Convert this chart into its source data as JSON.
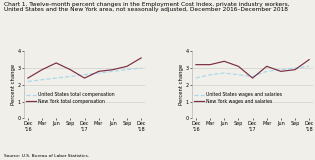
{
  "title_line1": "Chart 1. Twelve-month percent changes in the Employment Cost Index, private industry workers,",
  "title_line2": "United States and the New York area, not seasonally adjusted, December 2016–December 2018",
  "source": "Source: U.S. Bureau of Labor Statistics.",
  "ylabel": "Percent change",
  "xtick_labels": [
    "Dec\n'16",
    "Mar",
    "Jun",
    "Sep",
    "Dec\n'17",
    "Mar",
    "Jun",
    "Sep",
    "Dec\n'18"
  ],
  "ylim": [
    0,
    4.0
  ],
  "yticks": [
    0.0,
    1.0,
    2.0,
    3.0,
    4.0
  ],
  "left": {
    "us_dashed": [
      2.2,
      2.3,
      2.4,
      2.5,
      2.6,
      2.7,
      2.8,
      2.9,
      3.0
    ],
    "ny_solid": [
      2.4,
      2.9,
      3.3,
      2.9,
      2.4,
      2.8,
      2.9,
      3.1,
      3.6
    ],
    "legend1": "United States total compensation",
    "legend2": "New York total compensation"
  },
  "right": {
    "us_dashed": [
      2.4,
      2.6,
      2.7,
      2.6,
      2.5,
      2.8,
      2.9,
      3.0,
      3.1
    ],
    "ny_solid": [
      3.2,
      3.2,
      3.4,
      3.1,
      2.4,
      3.1,
      2.8,
      2.9,
      3.5
    ],
    "legend1": "United States wages and salaries",
    "legend2": "New York wages and salaries"
  },
  "us_color": "#A8D8EA",
  "ny_color": "#7B2D42",
  "grid_color": "#CCCCCC",
  "bg_color": "#F0EFEA",
  "title_fontsize": 4.2,
  "axis_label_fontsize": 3.8,
  "tick_fontsize": 3.5,
  "legend_fontsize": 3.3,
  "source_fontsize": 3.2
}
